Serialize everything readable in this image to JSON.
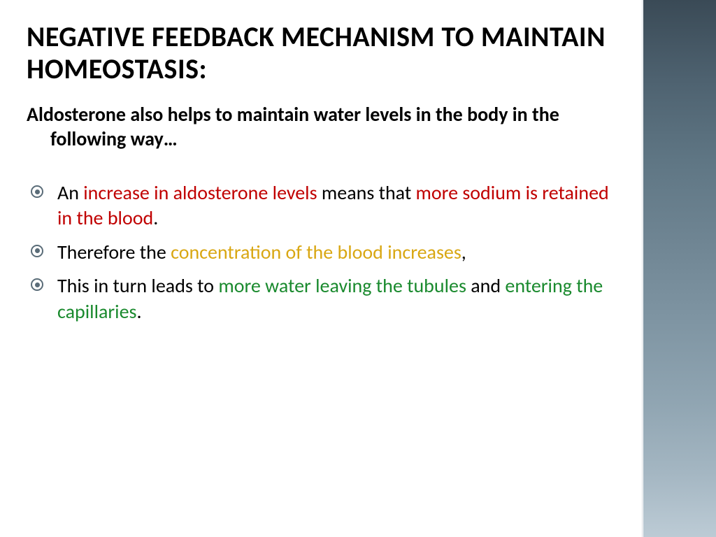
{
  "colors": {
    "text_black": "#000000",
    "red": "#c00000",
    "gold": "#d9a713",
    "green": "#1a8a2e",
    "bullet_ring": "#5a6c78",
    "sidebar_gradient_top": "#3a4a56",
    "sidebar_gradient_bottom": "#bccbd5",
    "background": "#ffffff"
  },
  "typography": {
    "title_fontsize": 40,
    "body_fontsize": 28,
    "font_family": "Calibri"
  },
  "title": "NEGATIVE FEEDBACK MECHANISM TO MAINTAIN HOMEOSTASIS:",
  "intro": "Aldosterone also helps to maintain water levels in the body in the following way…",
  "bullets": [
    {
      "segments": [
        {
          "text": "An ",
          "color": "black"
        },
        {
          "text": "increase in aldosterone levels ",
          "color": "red"
        },
        {
          "text": "means that ",
          "color": "black"
        },
        {
          "text": "more sodium is retained in the blood",
          "color": "red"
        },
        {
          "text": ".",
          "color": "black"
        }
      ]
    },
    {
      "segments": [
        {
          "text": "Therefore the ",
          "color": "black"
        },
        {
          "text": "concentration of the blood increases",
          "color": "gold"
        },
        {
          "text": ",",
          "color": "black"
        }
      ]
    },
    {
      "segments": [
        {
          "text": "This in turn leads to ",
          "color": "black"
        },
        {
          "text": "more water leaving the tubules ",
          "color": "green"
        },
        {
          "text": "and ",
          "color": "black"
        },
        {
          "text": "entering the capillaries",
          "color": "green"
        },
        {
          "text": ".",
          "color": "black"
        }
      ]
    }
  ]
}
